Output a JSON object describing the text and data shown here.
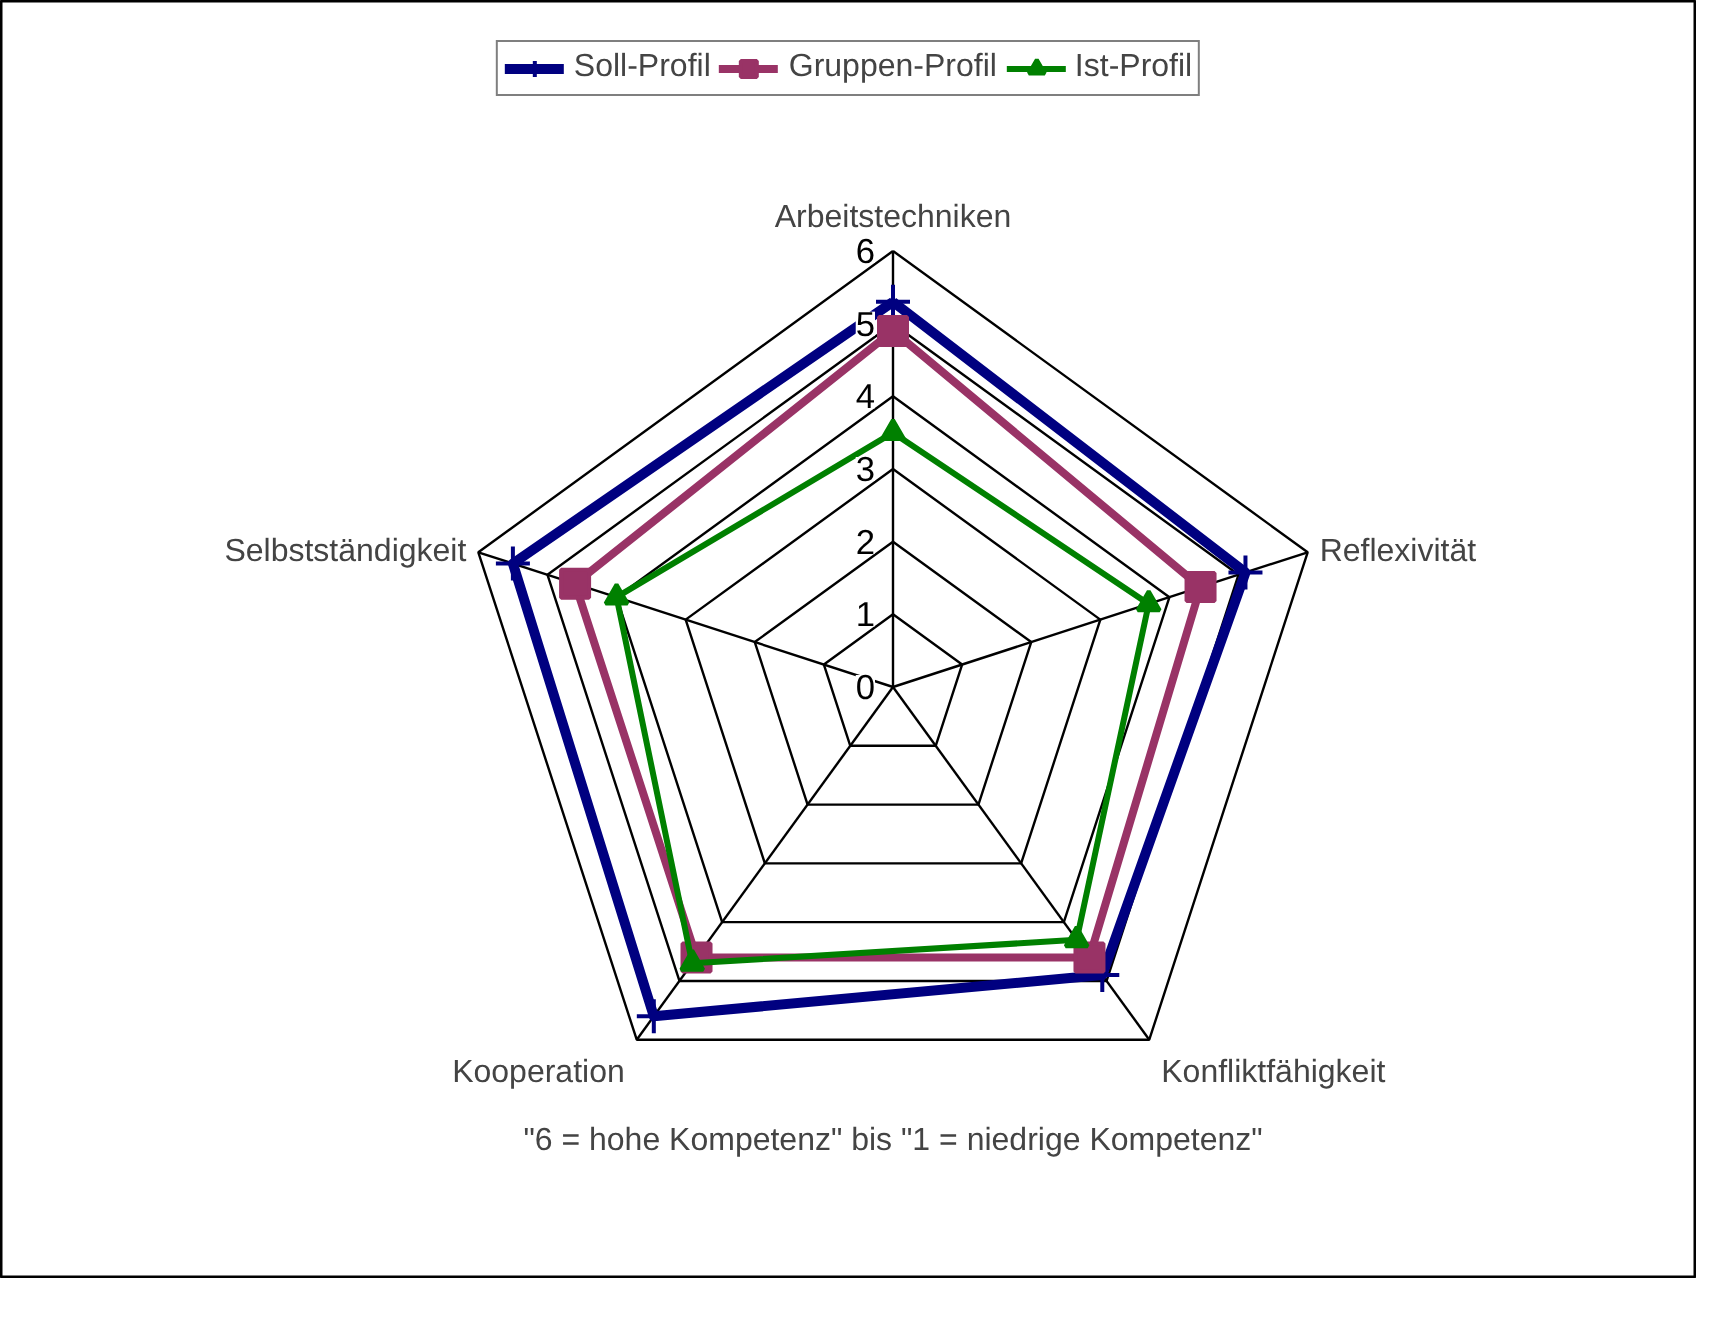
{
  "chart_data": {
    "type": "radar",
    "categories": [
      "Arbeitstechniken",
      "Reflexivität",
      "Konfliktfähigkeit",
      "Kooperation",
      "Selbstständigkeit"
    ],
    "series": [
      {
        "name": "Soll-Profil",
        "color": "#000080",
        "marker": "cross",
        "values": [
          5.3,
          5.1,
          4.9,
          5.6,
          5.5
        ]
      },
      {
        "name": "Gruppen-Profil",
        "color": "#993366",
        "marker": "square",
        "values": [
          4.9,
          4.45,
          4.6,
          4.6,
          4.6
        ]
      },
      {
        "name": "Ist-Profil",
        "color": "#008000",
        "marker": "triangle",
        "values": [
          3.5,
          3.7,
          4.3,
          4.7,
          4.0
        ]
      }
    ],
    "ylim": [
      0,
      6
    ],
    "yticks": [
      0,
      1,
      2,
      3,
      4,
      5,
      6
    ],
    "grid": true,
    "legend": "top",
    "line_style": "solid",
    "annotations": [
      "\"6 = hohe Kompetenz\" bis \"1 = niedrige Kompetenz\""
    ]
  }
}
